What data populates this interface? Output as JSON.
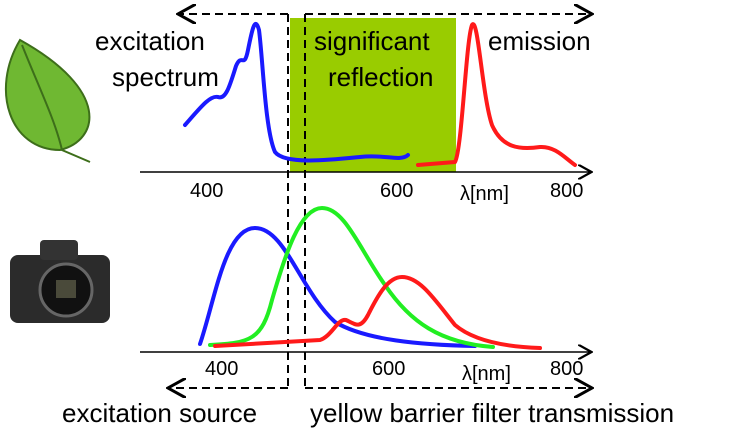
{
  "labels": {
    "excitation": "excitation",
    "spectrum": "spectrum",
    "significant": "significant",
    "reflection": "reflection",
    "emission": "emission",
    "excitation_source": "excitation source",
    "barrier_filter": "yellow barrier filter transmission"
  },
  "top_axis": {
    "ticks": [
      "400",
      "600",
      "800"
    ],
    "unit": "λ[nm]"
  },
  "bottom_axis": {
    "ticks": [
      "400",
      "600",
      "800"
    ],
    "unit": "λ[nm]"
  }
}
